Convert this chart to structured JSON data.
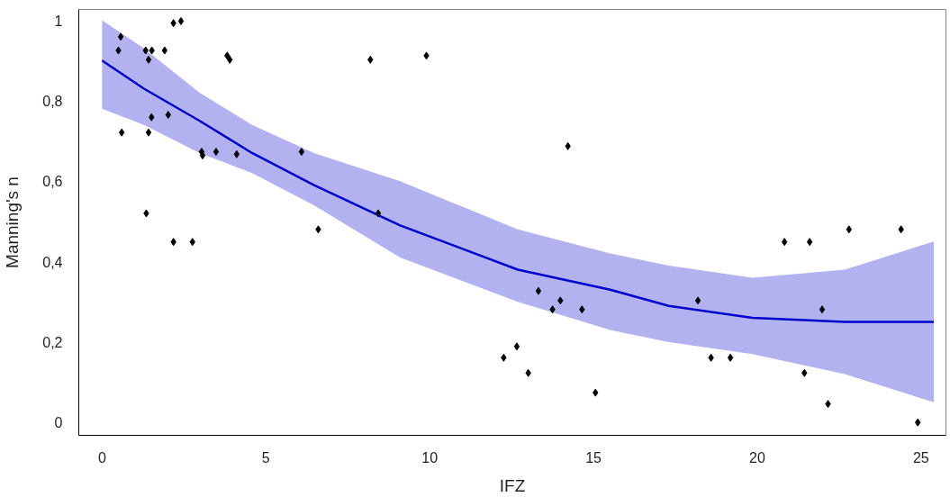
{
  "chart_data": {
    "type": "scatter",
    "xlabel": "IFZ",
    "ylabel": "Manning's n",
    "xlim": [
      -0.71,
      25.76
    ],
    "ylim": [
      -0.032,
      1.027
    ],
    "xticks": [
      0,
      5,
      10,
      15,
      20,
      25
    ],
    "yticks": [
      {
        "value": 0,
        "label": "0"
      },
      {
        "value": 0.2,
        "label": "0,2"
      },
      {
        "value": 0.4,
        "label": "0,4"
      },
      {
        "value": 0.6,
        "label": "0,6"
      },
      {
        "value": 0.8,
        "label": "0,8"
      },
      {
        "value": 1,
        "label": "1"
      }
    ],
    "grid": false,
    "series": [
      {
        "type": "line",
        "color": "#0000cc",
        "line_style": "solid",
        "marker": "none",
        "x": [
          0,
          1.28,
          2.98,
          4.58,
          6.47,
          9.1,
          12.69,
          15.51,
          17.3,
          19.85,
          22.67,
          25.39
        ],
        "values": [
          0.9,
          0.83,
          0.75,
          0.67,
          0.59,
          0.49,
          0.38,
          0.33,
          0.29,
          0.26,
          0.25,
          0.25
        ],
        "upper": [
          1.0,
          0.93,
          0.82,
          0.74,
          0.67,
          0.6,
          0.48,
          0.42,
          0.39,
          0.36,
          0.38,
          0.45
        ],
        "lower": [
          0.78,
          0.74,
          0.67,
          0.62,
          0.54,
          0.41,
          0.3,
          0.23,
          0.2,
          0.17,
          0.12,
          0.05
        ]
      },
      {
        "color": "#000000",
        "marker": "diamond",
        "x": [
          2.18,
          2.41,
          0.57,
          0.5,
          1.33,
          1.52,
          1.91,
          1.42,
          3.82,
          3.9,
          8.19,
          1.51,
          2.02,
          0.6,
          1.42,
          3.04,
          3.07,
          3.48,
          4.11,
          6.09,
          8.43,
          1.35,
          6.6,
          2.18,
          2.76,
          9.9,
          14.22,
          13.32,
          13.99,
          13.75,
          14.65,
          12.66,
          12.26,
          13.01,
          15.06,
          18.19,
          18.59,
          19.18,
          20.83,
          21.6,
          22.8,
          24.39,
          21.98,
          21.44,
          22.16,
          24.9
        ],
        "values": [
          0.993,
          0.998,
          0.959,
          0.925,
          0.925,
          0.925,
          0.925,
          0.902,
          0.912,
          0.902,
          0.902,
          0.759,
          0.765,
          0.721,
          0.721,
          0.673,
          0.664,
          0.673,
          0.667,
          0.673,
          0.52,
          0.52,
          0.48,
          0.449,
          0.449,
          0.912,
          0.687,
          0.327,
          0.303,
          0.281,
          0.281,
          0.189,
          0.161,
          0.123,
          0.074,
          0.303,
          0.161,
          0.161,
          0.449,
          0.449,
          0.48,
          0.48,
          0.281,
          0.123,
          0.046,
          0.0
        ]
      }
    ]
  }
}
